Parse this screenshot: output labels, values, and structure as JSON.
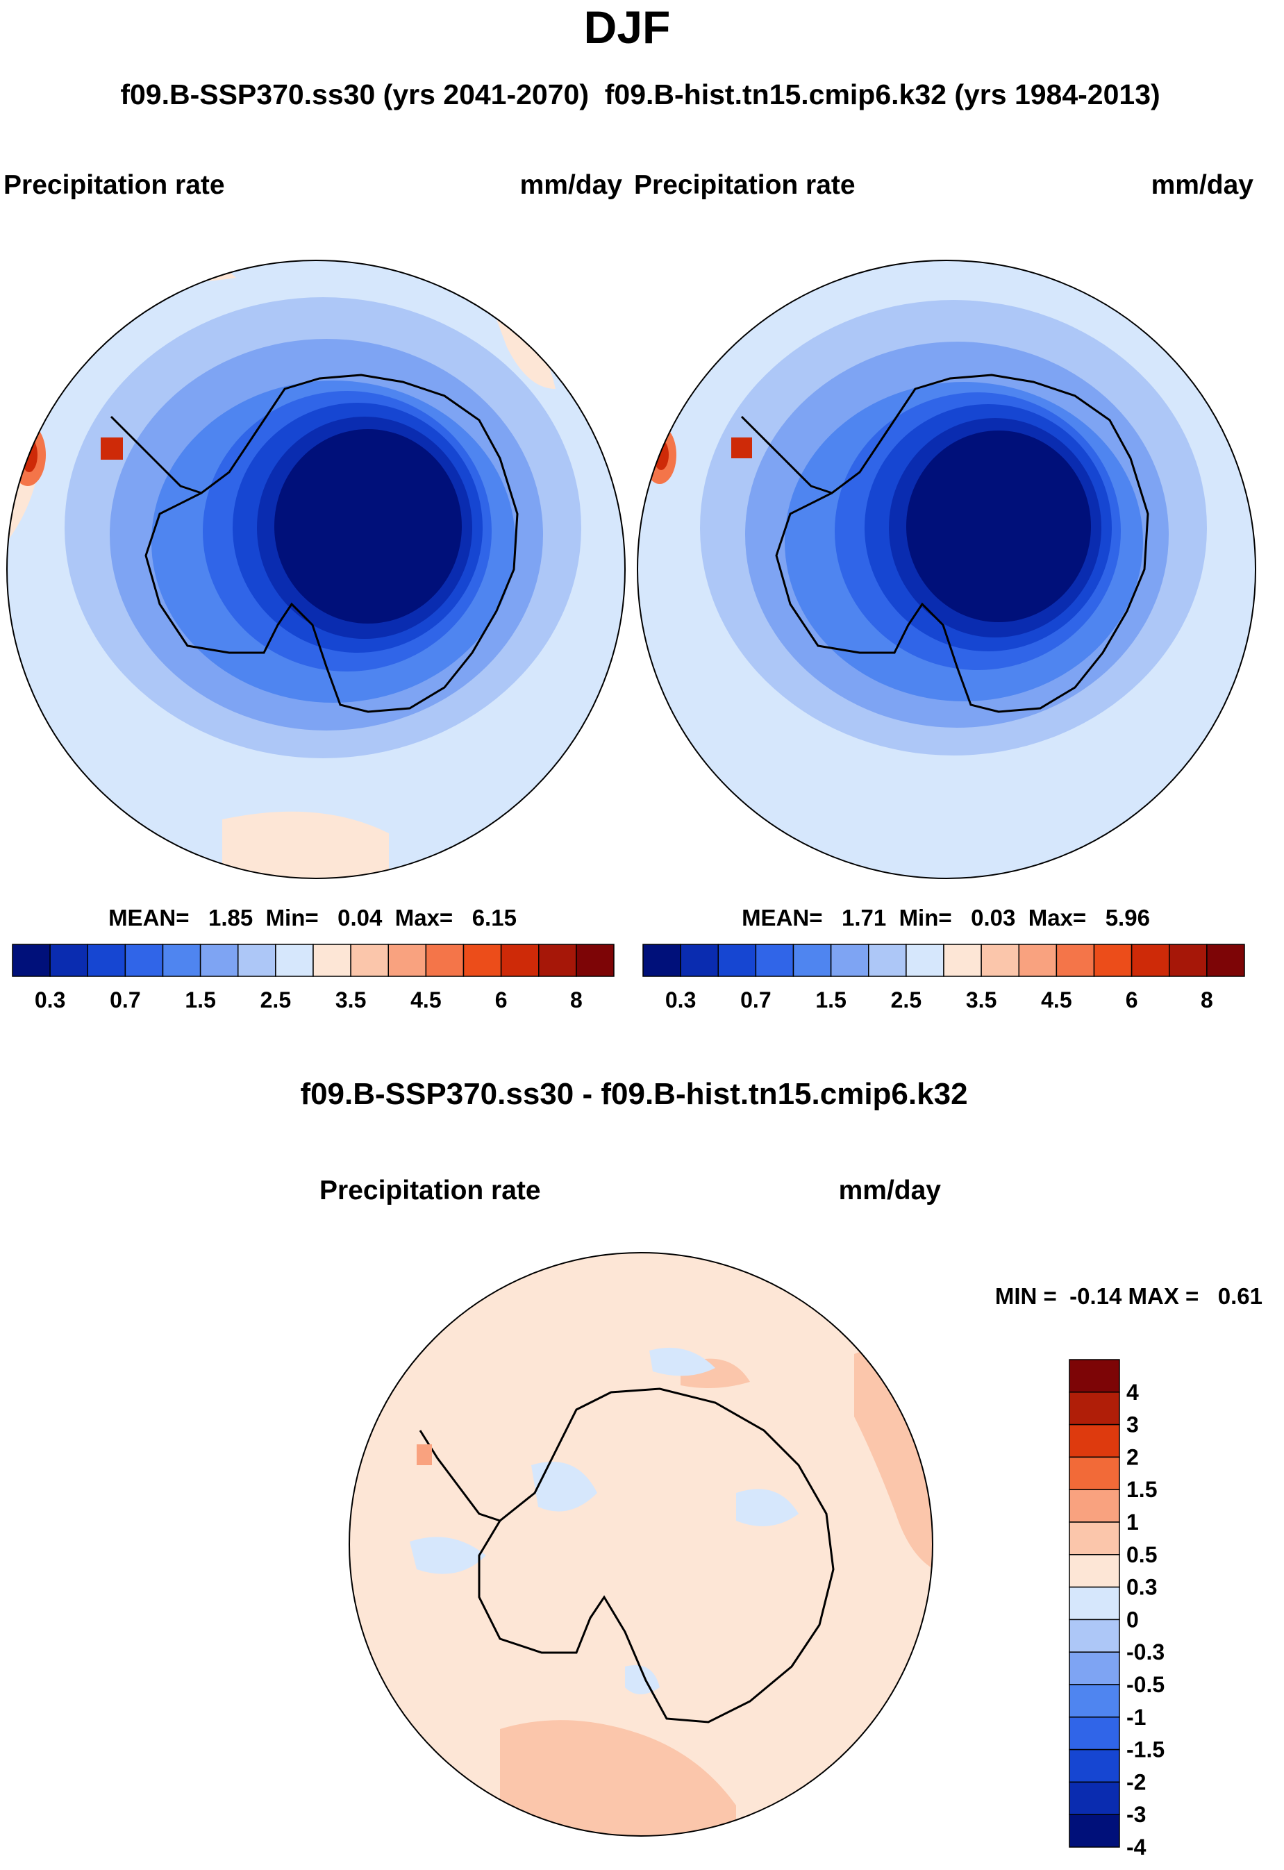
{
  "chart_data": {
    "type": "heatmap",
    "projection": "south-polar-stereographic",
    "title": "DJF",
    "subtitle": "f09.B-SSP370.ss30 (yrs 2041-2070)  f09.B-hist.tn15.cmip6.k32 (yrs 1984-2013)",
    "variable": "Precipitation rate",
    "units": "mm/day",
    "panels": [
      {
        "id": "case",
        "label": "f09.B-SSP370.ss30 (yrs 2041-2070)",
        "variable": "Precipitation rate",
        "units": "mm/day",
        "stats_text": "MEAN=   1.85  Min=   0.04  Max=   6.15",
        "mean": 1.85,
        "min": 0.04,
        "max": 6.15
      },
      {
        "id": "control",
        "label": "f09.B-hist.tn15.cmip6.k32 (yrs 1984-2013)",
        "variable": "Precipitation rate",
        "units": "mm/day",
        "stats_text": "MEAN=   1.71  Min=   0.03  Max=   5.96",
        "mean": 1.71,
        "min": 0.03,
        "max": 5.96
      },
      {
        "id": "difference",
        "label": "f09.B-SSP370.ss30 - f09.B-hist.tn15.cmip6.k32",
        "variable": "Precipitation rate",
        "units": "mm/day",
        "stats_text": "MIN =  -0.14 MAX =   0.61",
        "min": -0.14,
        "max": 0.61
      }
    ],
    "colorbar_abs": {
      "orientation": "horizontal",
      "levels": [
        "0.2",
        "0.3",
        "0.5",
        "0.7",
        "1",
        "1.5",
        "2",
        "2.5",
        "3",
        "3.5",
        "4",
        "4.5",
        "5",
        "6",
        "7",
        "8"
      ],
      "tick_labels": [
        "0.3",
        "0.7",
        "1.5",
        "2.5",
        "3.5",
        "4.5",
        "6",
        "8"
      ],
      "colors": [
        "#00107a",
        "#0a2cb0",
        "#1646d2",
        "#3065e8",
        "#4f85f0",
        "#7ea4f3",
        "#adc7f7",
        "#d6e7fc",
        "#fde6d6",
        "#fbc6ab",
        "#f9a27f",
        "#f47549",
        "#ec4d1a",
        "#ce2a08",
        "#a61708",
        "#7d0506"
      ]
    },
    "colorbar_diff": {
      "orientation": "vertical",
      "levels": [
        "-4",
        "-3",
        "-2",
        "-1.5",
        "-1",
        "-0.5",
        "-0.3",
        "0",
        "0.3",
        "0.5",
        "1",
        "1.5",
        "2",
        "3",
        "4"
      ],
      "tick_labels": [
        "4",
        "3",
        "2",
        "1.5",
        "1",
        "0.5",
        "0.3",
        "0",
        "-0.3",
        "-0.5",
        "-1",
        "-1.5",
        "-2",
        "-3",
        "-4"
      ],
      "colors_top_to_bottom": [
        "#7d0506",
        "#b01e08",
        "#de3a0e",
        "#f26a38",
        "#f9a27f",
        "#fbc6ab",
        "#fde6d6",
        "#d6e7fc",
        "#adc7f7",
        "#7ea4f3",
        "#4f85f0",
        "#3065e8",
        "#1646d2",
        "#0a2cb0",
        "#00107a"
      ]
    }
  }
}
